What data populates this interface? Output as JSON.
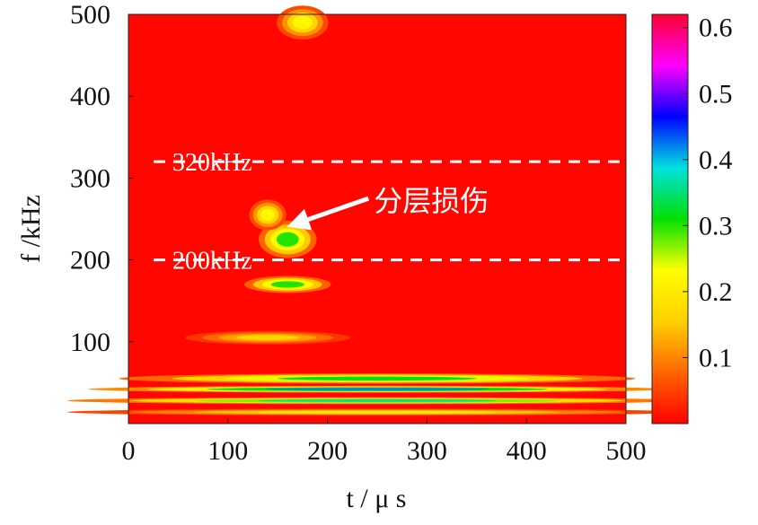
{
  "chart_data": {
    "type": "heatmap",
    "title": "",
    "xlabel": "t / μ s",
    "ylabel": "f /kHz",
    "xlim": [
      0,
      500
    ],
    "ylim": [
      0,
      500
    ],
    "x_ticks": [
      "0",
      "100",
      "200",
      "300",
      "400",
      "500"
    ],
    "y_ticks": [
      "100",
      "200",
      "300",
      "400",
      "500"
    ],
    "colorbar": {
      "range": [
        0,
        0.62
      ],
      "ticks": [
        "0.1",
        "0.2",
        "0.3",
        "0.4",
        "0.5",
        "0.6"
      ],
      "colors": [
        "#ff0000",
        "#ff6600",
        "#ffd000",
        "#ffff00",
        "#00e000",
        "#00e0e0",
        "#0000ff",
        "#ff00ff",
        "#ff0030"
      ]
    },
    "reference_lines": [
      {
        "f": 320,
        "label": "320kHz"
      },
      {
        "f": 200,
        "label": "200kHz"
      }
    ],
    "annotation": {
      "text": "分层损伤",
      "target_t": 160,
      "target_f": 240
    },
    "features": [
      {
        "t": 160,
        "f": 225,
        "rt": 28,
        "rf": 22,
        "v": 0.3
      },
      {
        "t": 140,
        "f": 255,
        "rt": 18,
        "rf": 18,
        "v": 0.22
      },
      {
        "t": 160,
        "f": 170,
        "rt": 42,
        "rf": 10,
        "v": 0.3
      },
      {
        "t": 175,
        "f": 490,
        "rt": 25,
        "rf": 20,
        "v": 0.22
      },
      {
        "t": 140,
        "f": 105,
        "rt": 80,
        "rf": 8,
        "v": 0.16
      },
      {
        "t": 250,
        "f": 55,
        "rt": 250,
        "rf": 6,
        "v": 0.32
      },
      {
        "t": 250,
        "f": 42,
        "rt": 280,
        "rf": 4,
        "v": 0.42
      },
      {
        "t": 250,
        "f": 28,
        "rt": 300,
        "rf": 4,
        "v": 0.36
      },
      {
        "t": 250,
        "f": 14,
        "rt": 300,
        "rf": 4,
        "v": 0.2
      }
    ]
  }
}
